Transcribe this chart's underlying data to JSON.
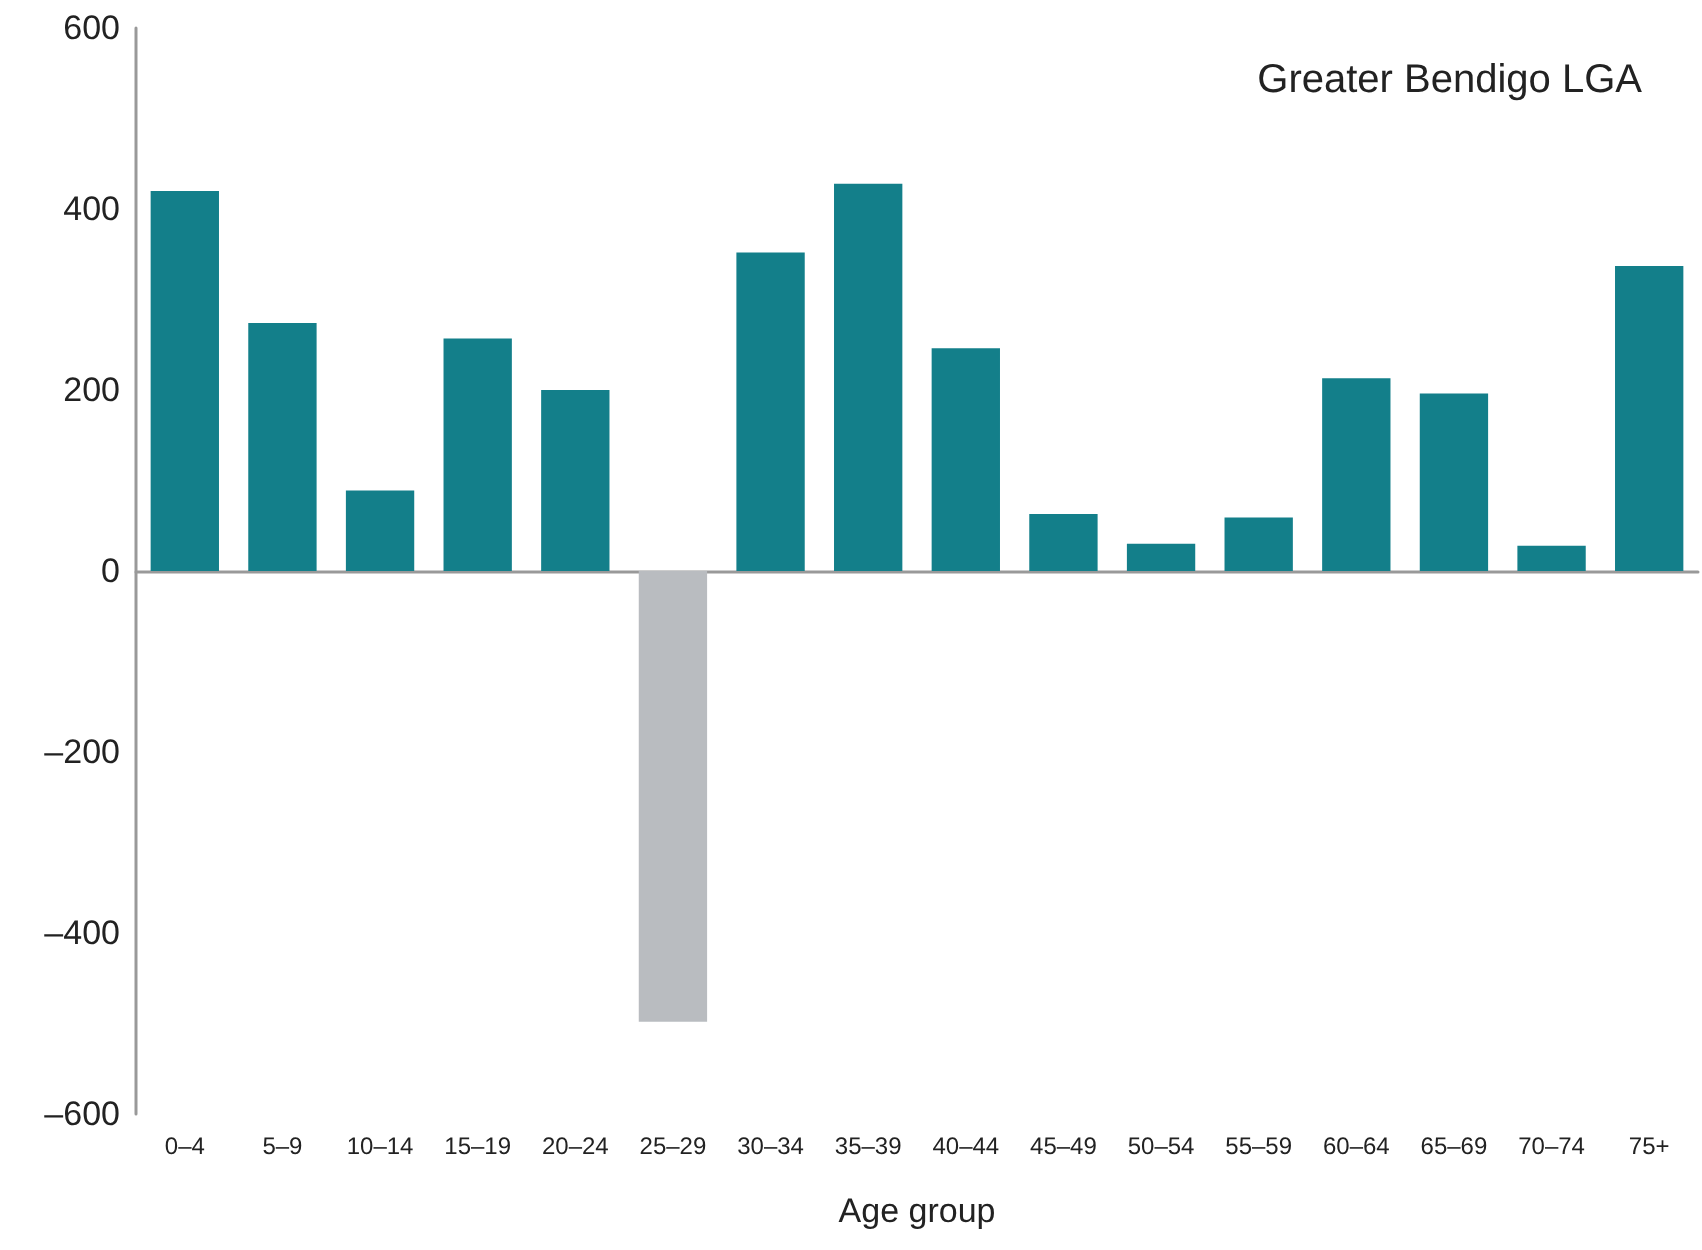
{
  "chart_data": {
    "type": "bar",
    "xlabel": "Age group",
    "annotations": [
      "Greater Bendigo LGA"
    ],
    "categories": [
      "0–4",
      "5–9",
      "10–14",
      "15–19",
      "20–24",
      "25–29",
      "30–34",
      "35–39",
      "40–44",
      "45–49",
      "50–54",
      "55–59",
      "60–64",
      "65–69",
      "70–74",
      "75+"
    ],
    "values": [
      420,
      274,
      89,
      257,
      200,
      -498,
      352,
      428,
      246,
      63,
      30,
      59,
      213,
      196,
      28,
      337
    ],
    "colors": [
      "#137f8a",
      "#137f8a",
      "#137f8a",
      "#137f8a",
      "#137f8a",
      "#b9bcc0",
      "#137f8a",
      "#137f8a",
      "#137f8a",
      "#137f8a",
      "#137f8a",
      "#137f8a",
      "#137f8a",
      "#137f8a",
      "#137f8a",
      "#137f8a"
    ],
    "ylim": [
      -600,
      600
    ],
    "yticks": [
      {
        "value": -600,
        "label": "–600"
      },
      {
        "value": -400,
        "label": "–400"
      },
      {
        "value": -200,
        "label": "–200"
      },
      0,
      200,
      400,
      600
    ]
  }
}
